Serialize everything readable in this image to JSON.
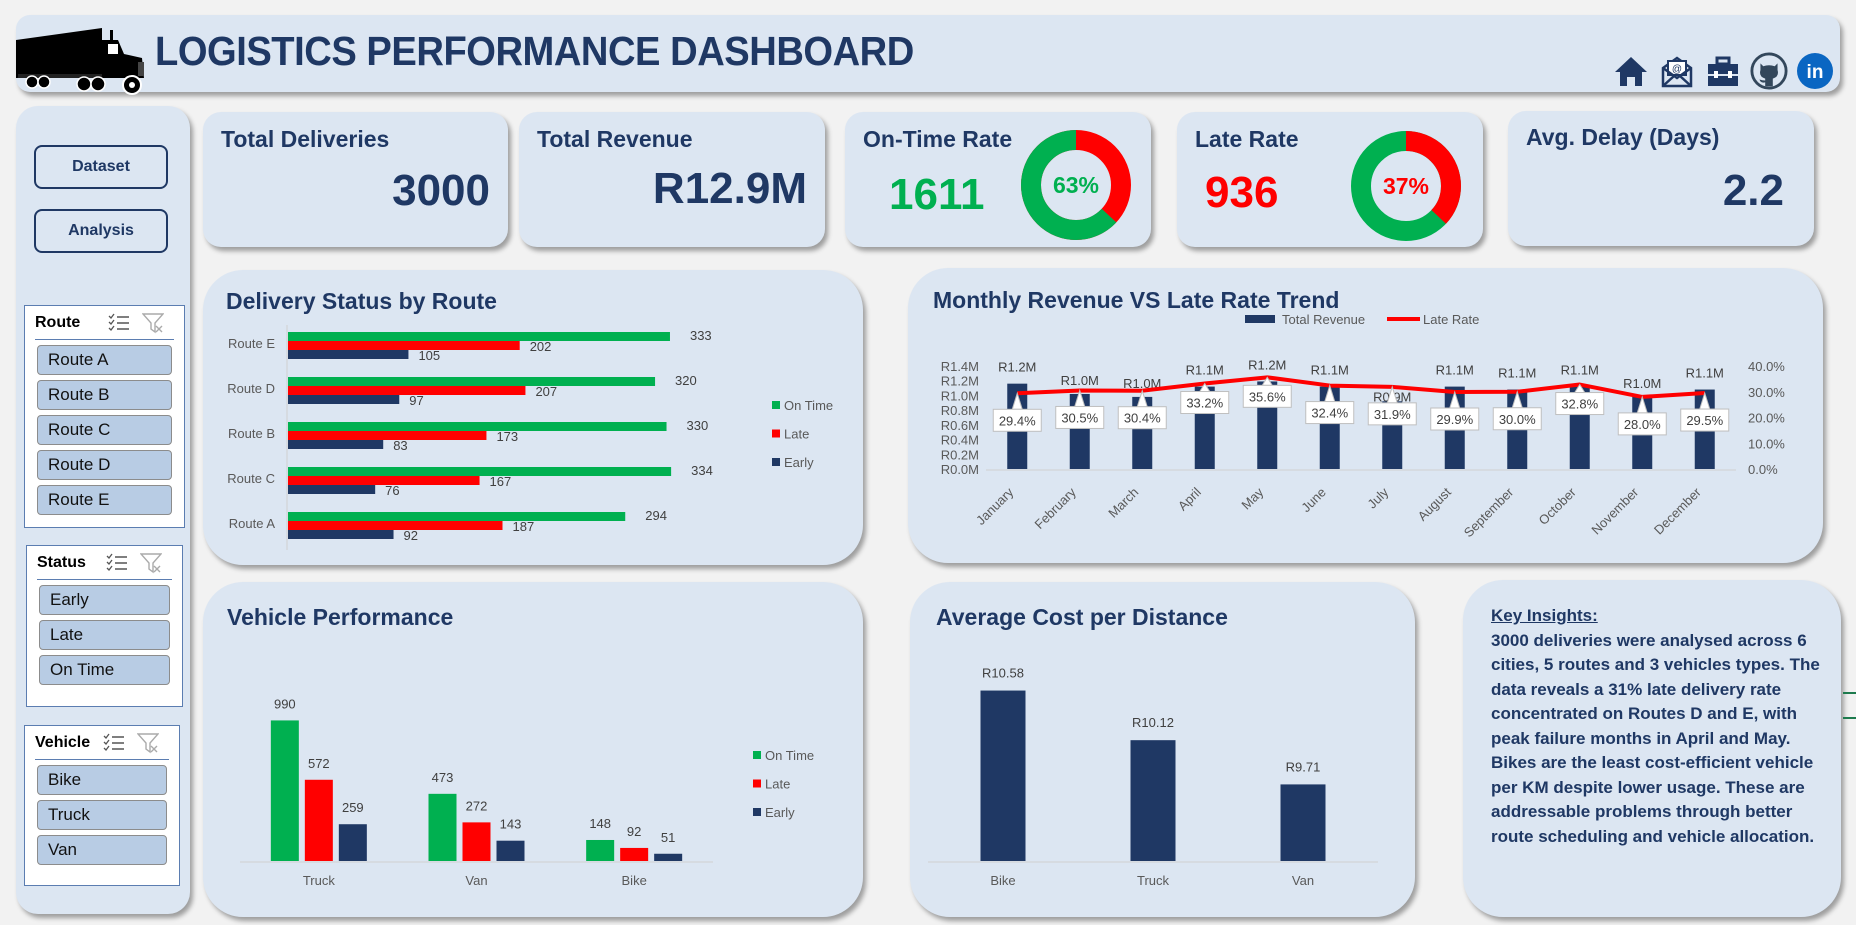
{
  "header": {
    "title": "LOGISTICS PERFORMANCE DASHBOARD",
    "logo_icon": "truck-icon",
    "icons": [
      "home-icon",
      "email-icon",
      "briefcase-icon",
      "github-icon",
      "linkedin-icon"
    ]
  },
  "sidebar": {
    "buttons": [
      {
        "label": "Dataset"
      },
      {
        "label": "Analysis"
      }
    ],
    "slicers": [
      {
        "title": "Route",
        "items": [
          "Route A",
          "Route B",
          "Route C",
          "Route D",
          "Route E"
        ]
      },
      {
        "title": "Status",
        "items": [
          "Early",
          "Late",
          "On Time"
        ]
      },
      {
        "title": "Vehicle",
        "items": [
          "Bike",
          "Truck",
          "Van"
        ]
      }
    ]
  },
  "kpis": {
    "total_deliveries": {
      "label": "Total Deliveries",
      "value": "3000"
    },
    "total_revenue": {
      "label": "Total Revenue",
      "value": "R12.9M"
    },
    "on_time_rate": {
      "label": "On-Time Rate",
      "value": "1611",
      "percent_label": "63%",
      "percent": 63
    },
    "late_rate": {
      "label": "Late Rate",
      "value": "936",
      "percent_label": "37%",
      "percent": 37
    },
    "avg_delay": {
      "label": "Avg. Delay (Days)",
      "value": "2.2"
    }
  },
  "colors": {
    "navy": "#1f3864",
    "green": "#00b050",
    "red": "#ff0000",
    "card": "#dce6f2"
  },
  "chart_data": [
    {
      "id": "delivery-status-by-route",
      "type": "bar",
      "orientation": "horizontal",
      "title": "Delivery Status by Route",
      "categories": [
        "Route E",
        "Route D",
        "Route B",
        "Route C",
        "Route A"
      ],
      "series": [
        {
          "name": "On Time",
          "color": "#00b050",
          "values": [
            333,
            320,
            330,
            334,
            294
          ]
        },
        {
          "name": "Late",
          "color": "#ff0000",
          "values": [
            202,
            207,
            173,
            167,
            187
          ]
        },
        {
          "name": "Early",
          "color": "#1f3864",
          "values": [
            105,
            97,
            83,
            76,
            92
          ]
        }
      ],
      "legend": "right",
      "xlim": [
        0,
        340
      ]
    },
    {
      "id": "monthly-revenue-late-rate",
      "type": "bar",
      "combo": "bar+line",
      "title": "Monthly Revenue VS Late Rate Trend",
      "categories": [
        "January",
        "February",
        "March",
        "April",
        "May",
        "June",
        "July",
        "August",
        "September",
        "October",
        "November",
        "December"
      ],
      "series": [
        {
          "name": "Total Revenue",
          "type": "bar",
          "color": "#1f3864",
          "axis": "left",
          "values": [
            1.16,
            1.02,
            0.98,
            1.12,
            1.19,
            1.12,
            0.92,
            1.12,
            1.08,
            1.12,
            0.98,
            1.08
          ],
          "labels": [
            "R1.2M",
            "R1.0M",
            "R1.0M",
            "R1.1M",
            "R1.2M",
            "R1.1M",
            "R0.9M",
            "R1.1M",
            "R1.1M",
            "R1.1M",
            "R1.0M",
            "R1.1M"
          ]
        },
        {
          "name": "Late Rate",
          "type": "line",
          "color": "#ff0000",
          "axis": "right",
          "values": [
            29.4,
            30.5,
            30.4,
            33.2,
            35.6,
            32.4,
            31.9,
            29.9,
            30.0,
            32.8,
            28.0,
            29.5
          ],
          "labels": [
            "29.4%",
            "30.5%",
            "30.4%",
            "33.2%",
            "35.6%",
            "32.4%",
            "31.9%",
            "29.9%",
            "30.0%",
            "32.8%",
            "28.0%",
            "29.5%"
          ]
        }
      ],
      "y_left": {
        "ticks": [
          "R0.0M",
          "R0.2M",
          "R0.4M",
          "R0.6M",
          "R0.8M",
          "R1.0M",
          "R1.2M",
          "R1.4M"
        ],
        "range": [
          0,
          1.4
        ]
      },
      "y_right": {
        "ticks": [
          "0.0%",
          "10.0%",
          "20.0%",
          "30.0%",
          "40.0%"
        ],
        "range": [
          0,
          40
        ]
      },
      "legend": "top"
    },
    {
      "id": "vehicle-performance",
      "type": "bar",
      "title": "Vehicle Performance",
      "categories": [
        "Truck",
        "Van",
        "Bike"
      ],
      "series": [
        {
          "name": "On Time",
          "color": "#00b050",
          "values": [
            990,
            473,
            148
          ]
        },
        {
          "name": "Late",
          "color": "#ff0000",
          "values": [
            572,
            272,
            92
          ]
        },
        {
          "name": "Early",
          "color": "#1f3864",
          "values": [
            259,
            143,
            51
          ]
        }
      ],
      "legend": "right",
      "ylim": [
        0,
        1000
      ]
    },
    {
      "id": "avg-cost-per-distance",
      "type": "bar",
      "title": "Average Cost per Distance",
      "categories": [
        "Bike",
        "Truck",
        "Van"
      ],
      "values": [
        10.58,
        10.12,
        9.71
      ],
      "labels": [
        "R10.58",
        "R10.12",
        "R9.71"
      ],
      "ylim": [
        9.0,
        10.65
      ]
    }
  ],
  "insights": {
    "heading": "Key Insights:",
    "body": "3000 deliveries were analysed across 6 cities, 5 routes and 3 vehicles types. The data reveals a 31% late delivery rate concentrated on Routes D and E, with peak failure months in April and May. Bikes are the least cost-efficient vehicle per KM despite lower usage. These are addressable problems through better route scheduling and vehicle allocation."
  }
}
